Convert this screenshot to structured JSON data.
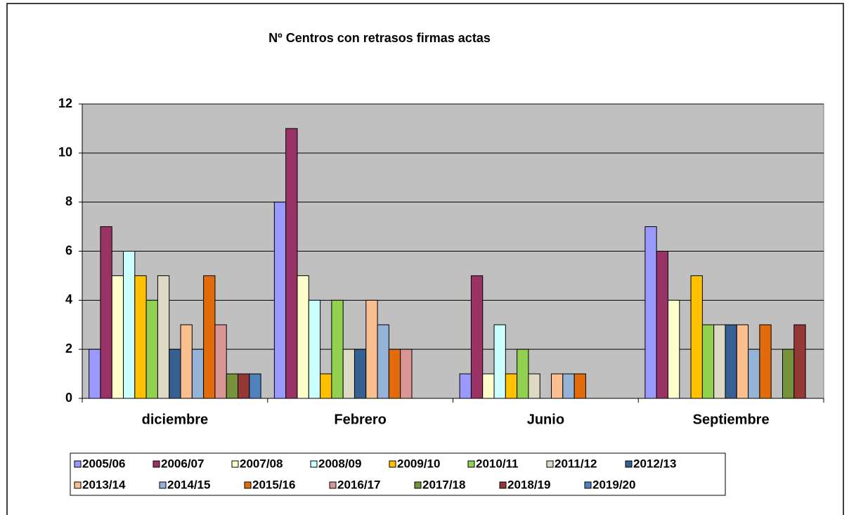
{
  "chart_data": {
    "type": "bar",
    "title": "Nº Centros con retrasos firmas actas",
    "categories": [
      "diciembre",
      "Febrero",
      "Junio",
      "Septiembre"
    ],
    "series": [
      {
        "name": "2005/06",
        "color": "#9999FF",
        "values": [
          2,
          8,
          1,
          7
        ]
      },
      {
        "name": "2006/07",
        "color": "#993366",
        "values": [
          7,
          11,
          5,
          6
        ]
      },
      {
        "name": "2007/08",
        "color": "#FFFFCC",
        "values": [
          5,
          5,
          1,
          4
        ]
      },
      {
        "name": "2008/09",
        "color": "#CCFFFF",
        "values": [
          6,
          4,
          3,
          null
        ]
      },
      {
        "name": "2009/10",
        "color": "#FFC000",
        "values": [
          5,
          1,
          1,
          5
        ]
      },
      {
        "name": "2010/11",
        "color": "#92D050",
        "values": [
          4,
          4,
          2,
          3
        ]
      },
      {
        "name": "2011/12",
        "color": "#DDD9C4",
        "values": [
          5,
          2,
          1,
          3
        ]
      },
      {
        "name": "2012/13",
        "color": "#366092",
        "values": [
          2,
          2,
          null,
          3
        ]
      },
      {
        "name": "2013/14",
        "color": "#FABF8F",
        "values": [
          3,
          4,
          1,
          3
        ]
      },
      {
        "name": "2014/15",
        "color": "#95B3D7",
        "values": [
          2,
          3,
          1,
          2
        ]
      },
      {
        "name": "2015/16",
        "color": "#E26B0A",
        "values": [
          5,
          2,
          1,
          3
        ]
      },
      {
        "name": "2016/17",
        "color": "#DA9694",
        "values": [
          3,
          2,
          null,
          null
        ]
      },
      {
        "name": "2017/18",
        "color": "#76933C",
        "values": [
          1,
          null,
          null,
          2
        ]
      },
      {
        "name": "2018/19",
        "color": "#953735",
        "values": [
          1,
          null,
          null,
          3
        ]
      },
      {
        "name": "2019/20",
        "color": "#4F81BD",
        "values": [
          1,
          null,
          null,
          null
        ]
      }
    ],
    "ylim": [
      0,
      12
    ],
    "yticks": [
      0,
      2,
      4,
      6,
      8,
      10,
      12
    ],
    "grid": true
  }
}
